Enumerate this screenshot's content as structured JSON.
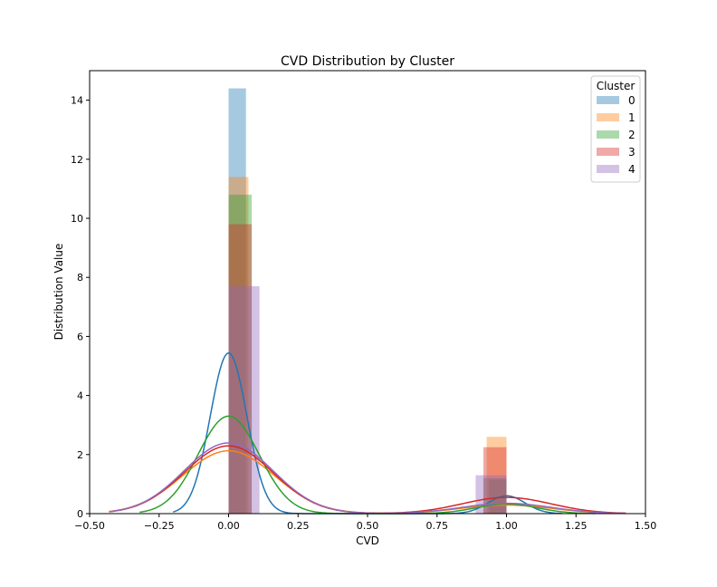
{
  "chart_data": {
    "type": "histogram+kde",
    "title": "CVD Distribution by Cluster",
    "xlabel": "CVD",
    "ylabel": "Distribution Value",
    "xlim": [
      -0.5,
      1.5
    ],
    "ylim": [
      0,
      15
    ],
    "xticks": [
      -0.5,
      -0.25,
      0.0,
      0.25,
      0.5,
      0.75,
      1.0,
      1.25,
      1.5
    ],
    "xtick_labels": [
      "−0.50",
      "−0.25",
      "0.00",
      "0.25",
      "0.50",
      "0.75",
      "1.00",
      "1.25",
      "1.50"
    ],
    "yticks": [
      0,
      2,
      4,
      6,
      8,
      10,
      12,
      14
    ],
    "ytick_labels": [
      "0",
      "2",
      "4",
      "6",
      "8",
      "10",
      "12",
      "14"
    ],
    "grid": false,
    "legend": {
      "title": "Cluster",
      "placement": "top-right"
    },
    "series": [
      {
        "name": "0",
        "color": "#1f77b4",
        "bars": [
          {
            "x0": 0.0,
            "x1": 0.0625,
            "height": 14.4
          },
          {
            "x0": 0.9375,
            "x1": 1.0,
            "height": 1.15
          }
        ],
        "kde": [
          {
            "mean": 0.0,
            "sd": 0.066,
            "weight": 0.9
          },
          {
            "mean": 1.0,
            "sd": 0.066,
            "weight": 0.1
          }
        ],
        "kde_range": [
          -0.2,
          1.2
        ]
      },
      {
        "name": "1",
        "color": "#ff7f0e",
        "bars": [
          {
            "x0": 0.0,
            "x1": 0.0714,
            "height": 11.4
          },
          {
            "x0": 0.9286,
            "x1": 1.0,
            "height": 2.6
          }
        ],
        "kde": [
          {
            "mean": 0.0,
            "sd": 0.165,
            "weight": 0.88
          },
          {
            "mean": 1.0,
            "sd": 0.165,
            "weight": 0.12
          }
        ],
        "kde_range": [
          -0.43,
          1.43
        ]
      },
      {
        "name": "2",
        "color": "#2ca02c",
        "bars": [
          {
            "x0": 0.0,
            "x1": 0.0833,
            "height": 10.8
          },
          {
            "x0": 0.9167,
            "x1": 1.0,
            "height": 1.2
          }
        ],
        "kde": [
          {
            "mean": 0.0,
            "sd": 0.11,
            "weight": 0.91
          },
          {
            "mean": 1.0,
            "sd": 0.11,
            "weight": 0.09
          }
        ],
        "kde_range": [
          -0.32,
          1.32
        ]
      },
      {
        "name": "3",
        "color": "#d62728",
        "bars": [
          {
            "x0": 0.0,
            "x1": 0.0833,
            "height": 9.8
          },
          {
            "x0": 0.9167,
            "x1": 1.0,
            "height": 2.25
          }
        ],
        "kde": [
          {
            "mean": 0.0,
            "sd": 0.16,
            "weight": 0.92
          },
          {
            "mean": 1.0,
            "sd": 0.16,
            "weight": 0.22
          }
        ],
        "kde_range": [
          -0.43,
          1.43
        ]
      },
      {
        "name": "4",
        "color": "#9467bd",
        "bars": [
          {
            "x0": 0.0,
            "x1": 0.1111,
            "height": 7.7
          },
          {
            "x0": 0.8889,
            "x1": 1.0,
            "height": 1.3
          }
        ],
        "kde": [
          {
            "mean": 0.0,
            "sd": 0.16,
            "weight": 0.96
          },
          {
            "mean": 1.0,
            "sd": 0.16,
            "weight": 0.14
          }
        ],
        "kde_range": [
          -0.43,
          1.43
        ]
      }
    ]
  }
}
